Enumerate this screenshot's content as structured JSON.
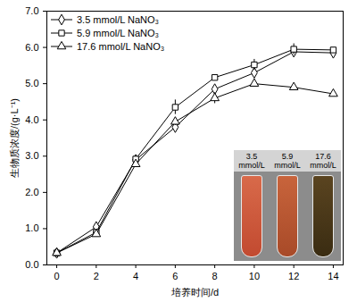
{
  "chart_data": {
    "type": "line",
    "x_label": "培养时间/d",
    "y_label": "生物质浓度/(g·L⁻¹)",
    "x": [
      0,
      2,
      4,
      6,
      8,
      10,
      12,
      14
    ],
    "series": [
      {
        "name": "3.5 mmol/L NaNO₃",
        "color": "#000000",
        "marker": "diamond",
        "line_style": "solid",
        "values": [
          0.33,
          1.05,
          2.9,
          3.8,
          4.85,
          5.3,
          5.88,
          5.85
        ],
        "errors": [
          0.02,
          0.05,
          0.05,
          0.08,
          0.05,
          0.1,
          0.05,
          0.05
        ]
      },
      {
        "name": "5.9 mmol/L NaNO₃",
        "color": "#000000",
        "marker": "square",
        "line_style": "solid",
        "values": [
          0.33,
          0.9,
          2.92,
          4.35,
          5.17,
          5.52,
          5.95,
          5.93
        ],
        "errors": [
          0.02,
          0.05,
          0.05,
          0.2,
          0.05,
          0.15,
          0.15,
          0.05
        ]
      },
      {
        "name": "17.6 mmol/L NaNO₃",
        "color": "#000000",
        "marker": "triangle",
        "line_style": "solid",
        "values": [
          0.33,
          0.85,
          2.78,
          3.95,
          4.6,
          5.0,
          4.9,
          4.72
        ],
        "errors": [
          0.02,
          0.05,
          0.05,
          0.1,
          0.15,
          0.05,
          0.05,
          0.05
        ]
      }
    ],
    "xlim": [
      -0.5,
      14.5
    ],
    "xticks": [
      0,
      2,
      4,
      6,
      8,
      10,
      12,
      14
    ],
    "ylim": [
      0,
      7
    ],
    "yticks": [
      0,
      1,
      2,
      3,
      4,
      5,
      6,
      7
    ],
    "grid": false,
    "legend": "top-left",
    "annotations": [
      "3.5 mmol/L",
      "5.9 mmol/L",
      "17.6 mmol/L"
    ]
  }
}
